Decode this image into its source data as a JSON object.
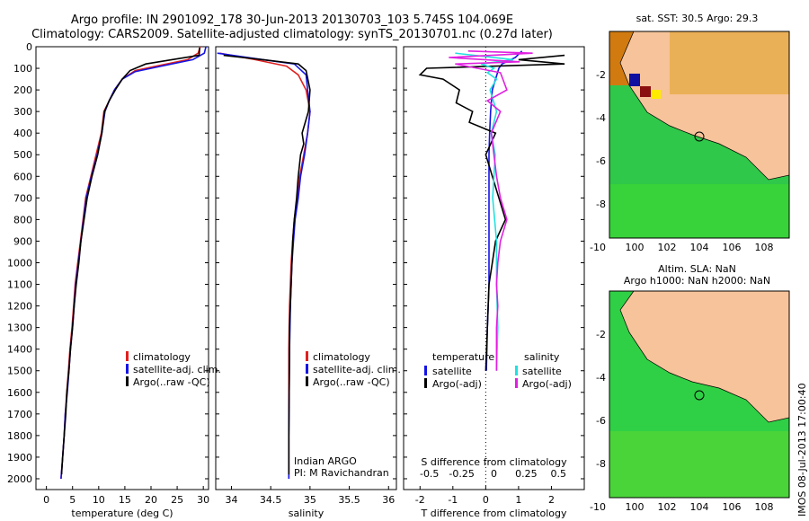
{
  "header": {
    "line1": "Argo profile: IN 2901092_178 30-Jun-2013 20130703_103 5.745S 104.069E",
    "line2": "Climatology: CARS2009. Satellite-adjusted climatology: synTS_20130701.nc (0.27d later)"
  },
  "colors": {
    "climatology": "#e02020",
    "satellite": "#1414e6",
    "argo": "#000000",
    "sat_salinity": "#22e0e0",
    "argo_salinity": "#e020e0"
  },
  "panels": {
    "temperature": {
      "xlabel": "temperature (deg C)",
      "xticks": [
        "0",
        "5",
        "10",
        "15",
        "20",
        "25",
        "30"
      ],
      "legend": [
        "climatology",
        "satellite-adj. clim.",
        "Argo(..raw -QC)"
      ]
    },
    "salinity": {
      "xlabel": "salinity",
      "xticks": [
        "34",
        "34.5",
        "35",
        "35.5",
        "36"
      ],
      "legend": [
        "climatology",
        "satellite-adj. clim.",
        "Argo(..raw -QC)"
      ],
      "note1": "Indian ARGO",
      "note2": "PI: M Ravichandran"
    },
    "difference": {
      "xlabel": "T difference from climatology",
      "toplabel": "S difference from climatology",
      "xticks": [
        "-2",
        "-1",
        "0",
        "1",
        "2"
      ],
      "topticks": [
        "-0.5",
        "-0.25",
        "0",
        "0.25",
        "0.5"
      ],
      "legend_temp_title": "temperature",
      "legend_sal_title": "salinity",
      "legend_temp": [
        "satellite",
        "Argo(-adj)"
      ],
      "legend_sal": [
        "satellite",
        "Argo(-adj)"
      ]
    },
    "depth_ticks": [
      "0",
      "100",
      "200",
      "300",
      "400",
      "500",
      "600",
      "700",
      "800",
      "900",
      "1000",
      "1100",
      "1200",
      "1300",
      "1400",
      "1500",
      "1600",
      "1700",
      "1800",
      "1900",
      "2000"
    ]
  },
  "maps": {
    "sst_title": "sat. SST: 30.5 Argo: 29.3",
    "sla_title1": "Altim. SLA: NaN",
    "sla_title2": "Argo h1000: NaN h2000: NaN",
    "xticks": [
      "100",
      "102",
      "104",
      "106",
      "108"
    ],
    "yticks": [
      "-2",
      "-4",
      "-6",
      "-8",
      "-10"
    ],
    "float_lon": 104.069,
    "float_lat": -5.745
  },
  "footer": {
    "stamp": "IMOS 08-Jul-2013 17:00:40"
  },
  "chart_data": [
    {
      "type": "line",
      "title": "",
      "xlabel": "temperature (deg C)",
      "ylabel": "",
      "xlim": [
        -2,
        31
      ],
      "ylim": [
        2050,
        0
      ],
      "series": [
        {
          "name": "climatology",
          "color": "#e02020",
          "points": [
            [
              29.4,
              0
            ],
            [
              29,
              30
            ],
            [
              27,
              60
            ],
            [
              22,
              85
            ],
            [
              17,
              110
            ],
            [
              14.5,
              150
            ],
            [
              13,
              200
            ],
            [
              12,
              250
            ],
            [
              11,
              300
            ],
            [
              10.5,
              400
            ],
            [
              9.5,
              500
            ],
            [
              8.5,
              600
            ],
            [
              7.5,
              700
            ],
            [
              7,
              800
            ],
            [
              6.5,
              900
            ],
            [
              6,
              1000
            ],
            [
              5.5,
              1100
            ],
            [
              5.2,
              1200
            ],
            [
              4.9,
              1300
            ],
            [
              4.5,
              1400
            ],
            [
              4.2,
              1500
            ],
            [
              3.9,
              1600
            ],
            [
              3.6,
              1700
            ],
            [
              3.4,
              1800
            ],
            [
              3.1,
              1900
            ],
            [
              2.8,
              2000
            ]
          ]
        },
        {
          "name": "satellite-adj. clim.",
          "color": "#1414e6",
          "points": [
            [
              30.5,
              0
            ],
            [
              30.2,
              30
            ],
            [
              28,
              60
            ],
            [
              22,
              90
            ],
            [
              17,
              115
            ],
            [
              14.5,
              150
            ],
            [
              13,
              200
            ],
            [
              12,
              250
            ],
            [
              11.2,
              300
            ],
            [
              10.6,
              400
            ],
            [
              9.7,
              500
            ],
            [
              8.6,
              600
            ],
            [
              7.6,
              700
            ],
            [
              7.1,
              800
            ],
            [
              6.6,
              900
            ],
            [
              6.1,
              1000
            ],
            [
              5.6,
              1100
            ],
            [
              5.3,
              1200
            ],
            [
              5,
              1300
            ],
            [
              4.6,
              1400
            ],
            [
              4.3,
              1500
            ],
            [
              4,
              1600
            ],
            [
              3.6,
              1700
            ],
            [
              3.4,
              1800
            ],
            [
              3.1,
              1900
            ],
            [
              2.8,
              2000
            ]
          ]
        },
        {
          "name": "Argo(..raw -QC)",
          "color": "#000000",
          "points": [
            [
              29.3,
              5
            ],
            [
              29.2,
              40
            ],
            [
              24,
              60
            ],
            [
              19,
              80
            ],
            [
              16,
              110
            ],
            [
              14.5,
              150
            ],
            [
              13.3,
              195
            ],
            [
              12,
              250
            ],
            [
              11.1,
              300
            ],
            [
              10.6,
              400
            ],
            [
              9.8,
              500
            ],
            [
              8.7,
              600
            ],
            [
              7.8,
              700
            ],
            [
              7.2,
              800
            ],
            [
              6.6,
              900
            ],
            [
              6.2,
              1000
            ],
            [
              5.7,
              1100
            ],
            [
              5.3,
              1200
            ],
            [
              5,
              1300
            ],
            [
              4.6,
              1400
            ],
            [
              4.3,
              1500
            ],
            [
              3.9,
              1600
            ],
            [
              3.7,
              1700
            ],
            [
              3.4,
              1800
            ],
            [
              3.1,
              1900
            ],
            [
              2.9,
              1980
            ]
          ]
        }
      ]
    },
    {
      "type": "line",
      "title": "",
      "xlabel": "salinity",
      "ylabel": "",
      "xlim": [
        33.8,
        36.1
      ],
      "ylim": [
        2050,
        0
      ],
      "series": [
        {
          "name": "climatology",
          "color": "#e02020",
          "points": [
            [
              33.85,
              30
            ],
            [
              34.3,
              60
            ],
            [
              34.7,
              90
            ],
            [
              34.85,
              130
            ],
            [
              34.95,
              200
            ],
            [
              35,
              300
            ],
            [
              34.97,
              400
            ],
            [
              34.92,
              500
            ],
            [
              34.87,
              600
            ],
            [
              34.84,
              700
            ],
            [
              34.8,
              800
            ],
            [
              34.78,
              900
            ],
            [
              34.76,
              1000
            ],
            [
              34.75,
              1100
            ],
            [
              34.74,
              1200
            ],
            [
              34.735,
              1300
            ],
            [
              34.73,
              1400
            ],
            [
              34.73,
              1600
            ],
            [
              34.73,
              1800
            ],
            [
              34.73,
              2000
            ]
          ]
        },
        {
          "name": "satellite-adj. clim.",
          "color": "#1414e6",
          "points": [
            [
              33.82,
              30
            ],
            [
              34.3,
              55
            ],
            [
              34.8,
              80
            ],
            [
              34.95,
              130
            ],
            [
              34.97,
              200
            ],
            [
              35,
              300
            ],
            [
              34.97,
              400
            ],
            [
              34.93,
              500
            ],
            [
              34.88,
              600
            ],
            [
              34.85,
              700
            ],
            [
              34.81,
              800
            ],
            [
              34.79,
              900
            ],
            [
              34.77,
              1000
            ],
            [
              34.76,
              1100
            ],
            [
              34.75,
              1200
            ],
            [
              34.745,
              1300
            ],
            [
              34.74,
              1400
            ],
            [
              34.735,
              1600
            ],
            [
              34.73,
              1800
            ],
            [
              34.73,
              2000
            ]
          ]
        },
        {
          "name": "Argo(..raw -QC)",
          "color": "#000000",
          "points": [
            [
              33.9,
              40
            ],
            [
              34.4,
              60
            ],
            [
              34.85,
              80
            ],
            [
              34.95,
              110
            ],
            [
              35,
              200
            ],
            [
              34.98,
              300
            ],
            [
              34.9,
              400
            ],
            [
              34.92,
              450
            ],
            [
              34.88,
              500
            ],
            [
              34.85,
              600
            ],
            [
              34.83,
              700
            ],
            [
              34.8,
              800
            ],
            [
              34.78,
              900
            ],
            [
              34.77,
              1000
            ],
            [
              34.76,
              1100
            ],
            [
              34.75,
              1200
            ],
            [
              34.74,
              1300
            ],
            [
              34.74,
              1400
            ],
            [
              34.735,
              1600
            ],
            [
              34.73,
              1800
            ],
            [
              34.73,
              1980
            ]
          ]
        }
      ]
    },
    {
      "type": "line",
      "title": "",
      "xlabel": "T difference from climatology",
      "ylabel": "",
      "xlim": [
        -2.5,
        3.0
      ],
      "ylim": [
        2050,
        0
      ],
      "series": [
        {
          "name": "satellite",
          "color": "#1414e6",
          "points": [
            [
              1.1,
              20
            ],
            [
              0.9,
              50
            ],
            [
              0.5,
              80
            ],
            [
              0.4,
              100
            ],
            [
              0.3,
              150
            ],
            [
              0.2,
              200
            ],
            [
              0.15,
              300
            ],
            [
              0.12,
              400
            ],
            [
              0.1,
              500
            ],
            [
              0.1,
              700
            ],
            [
              0.1,
              900
            ],
            [
              0.1,
              1100
            ],
            [
              0.05,
              1300
            ],
            [
              0.02,
              1500
            ]
          ]
        },
        {
          "name": "Argo(-adj)",
          "color": "#000000",
          "points": [
            [
              2.4,
              40
            ],
            [
              1,
              60
            ],
            [
              2.4,
              80
            ],
            [
              -1.8,
              100
            ],
            [
              -2,
              130
            ],
            [
              -1.3,
              150
            ],
            [
              -0.8,
              200
            ],
            [
              -0.9,
              260
            ],
            [
              -0.4,
              300
            ],
            [
              -0.5,
              350
            ],
            [
              0.3,
              400
            ],
            [
              0,
              500
            ],
            [
              0.2,
              600
            ],
            [
              0.4,
              700
            ],
            [
              0.6,
              800
            ],
            [
              0.3,
              900
            ],
            [
              0.2,
              1000
            ],
            [
              0.1,
              1100
            ],
            [
              0.05,
              1300
            ],
            [
              0,
              1500
            ]
          ]
        }
      ]
    },
    {
      "type": "line",
      "title": "",
      "xlabel": "S difference from climatology",
      "ylabel": "",
      "xlim": [
        -0.7,
        0.7
      ],
      "ylim": [
        2050,
        0
      ],
      "series": [
        {
          "name": "satellite",
          "color": "#22e0e0",
          "points": [
            [
              -0.3,
              30
            ],
            [
              0.15,
              60
            ],
            [
              -0.1,
              80
            ],
            [
              0,
              100
            ],
            [
              -0.05,
              120
            ],
            [
              0.02,
              150
            ],
            [
              -0.03,
              200
            ],
            [
              0.02,
              300
            ],
            [
              -0.02,
              400
            ],
            [
              0.01,
              500
            ],
            [
              -0.01,
              700
            ],
            [
              0.02,
              900
            ],
            [
              0.02,
              1100
            ],
            [
              0.03,
              1300
            ],
            [
              0.02,
              1500
            ]
          ]
        },
        {
          "name": "Argo(-adj)",
          "color": "#e020e0",
          "points": [
            [
              -0.2,
              20
            ],
            [
              0.3,
              30
            ],
            [
              -0.35,
              50
            ],
            [
              0.2,
              70
            ],
            [
              -0.3,
              80
            ],
            [
              0.05,
              120
            ],
            [
              0.1,
              200
            ],
            [
              -0.05,
              250
            ],
            [
              0.05,
              300
            ],
            [
              -0.02,
              400
            ],
            [
              0,
              500
            ],
            [
              0.02,
              600
            ],
            [
              0.05,
              700
            ],
            [
              0.1,
              800
            ],
            [
              0.05,
              900
            ],
            [
              0.03,
              1000
            ],
            [
              0.02,
              1100
            ],
            [
              0.03,
              1200
            ],
            [
              0.02,
              1300
            ],
            [
              0.02,
              1500
            ]
          ]
        }
      ]
    }
  ]
}
